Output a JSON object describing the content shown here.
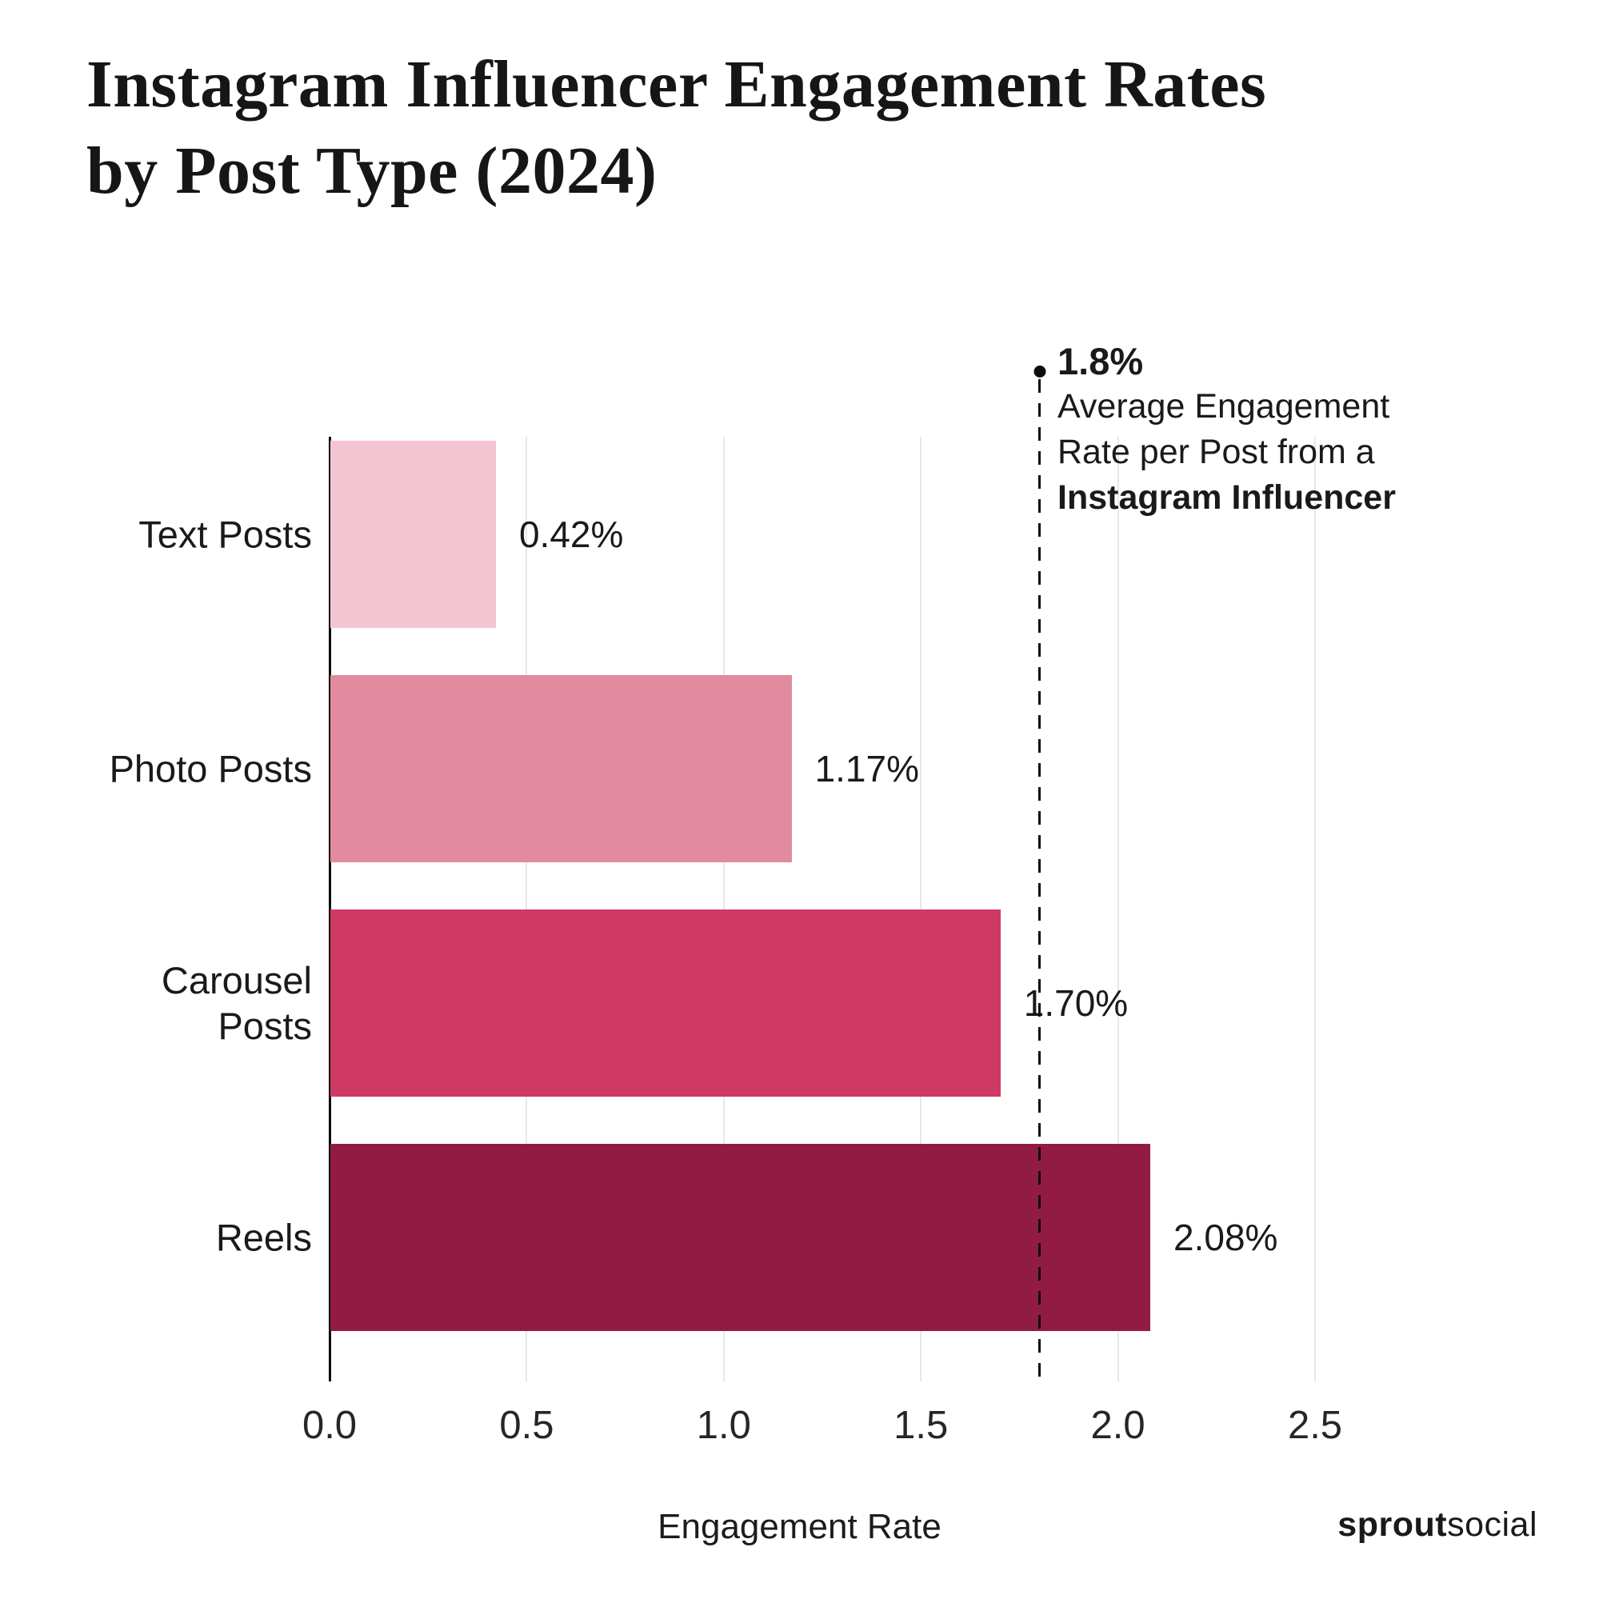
{
  "title": "Instagram Influencer Engagement Rates by Post Type (2024)",
  "title_lines": [
    "Instagram Influencer Engagement Rates",
    "by Post Type (2024)"
  ],
  "footer": {
    "brand_bold": "sprout",
    "brand_regular": "social"
  },
  "chart_data": {
    "type": "bar",
    "orientation": "horizontal",
    "title": "Instagram Influencer Engagement Rates by Post Type (2024)",
    "categories": [
      "Text Posts",
      "Photo Posts",
      "Carousel Posts",
      "Reels"
    ],
    "values": [
      0.42,
      1.17,
      1.7,
      2.08
    ],
    "value_labels": [
      "0.42%",
      "1.17%",
      "1.70%",
      "2.08%"
    ],
    "bar_colors": [
      "#f3c5d1",
      "#e18aa0",
      "#ce3a63",
      "#911b43"
    ],
    "xlabel": "Engagement Rate",
    "ylabel": "",
    "xlim": [
      0,
      2.5
    ],
    "xticks": [
      0.0,
      0.5,
      1.0,
      1.5,
      2.0,
      2.5
    ],
    "xtick_labels": [
      "0.0",
      "0.5",
      "1.0",
      "1.5",
      "2.0",
      "2.5"
    ],
    "grid": true,
    "legend": "none",
    "reference_line": {
      "value": 1.8,
      "style": "dashed",
      "label_value": "1.8%",
      "label_lines": [
        "Average Engagement",
        "Rate per Post from a"
      ],
      "label_bold_line": "Instagram Influencer"
    },
    "colors": {
      "gridline": "#e8e8e8",
      "axis": "#0d0d0d",
      "text": "#1a1a1a",
      "background": "#ffffff"
    }
  }
}
